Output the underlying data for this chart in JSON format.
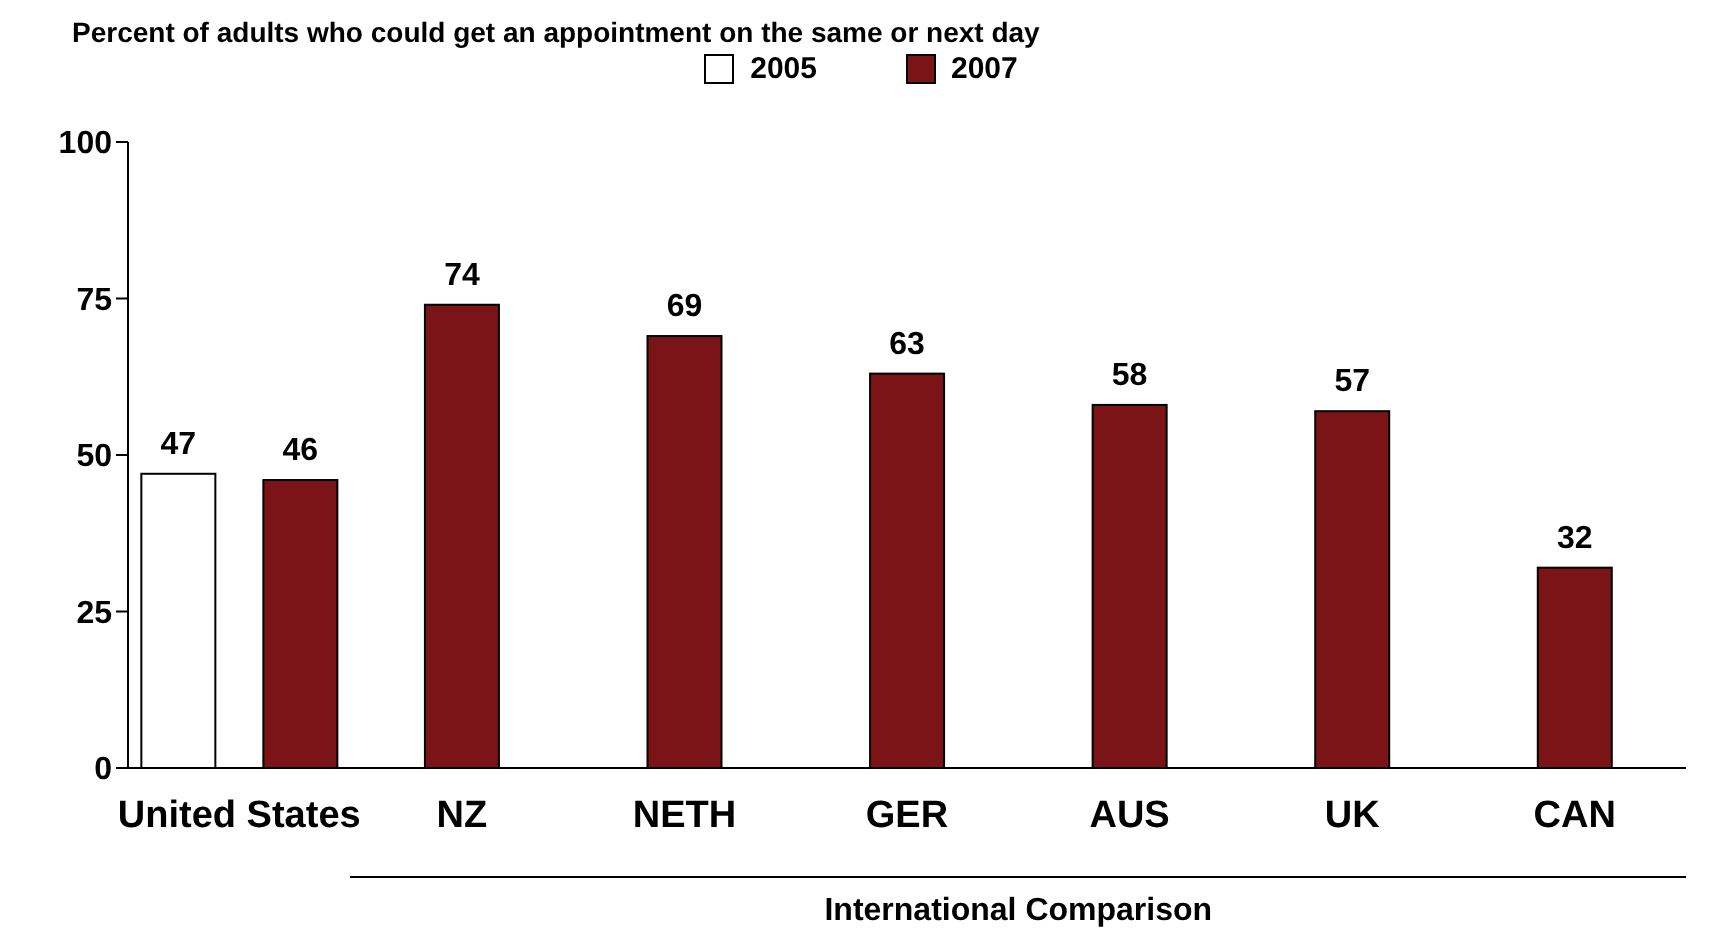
{
  "chart_data": {
    "type": "bar",
    "title": "Percent of adults who could get an appointment on the same or next day",
    "categories": [
      "United States",
      "NZ",
      "NETH",
      "GER",
      "AUS",
      "UK",
      "CAN"
    ],
    "series": [
      {
        "name": "2005",
        "color": "#ffffff",
        "values": [
          47,
          null,
          null,
          null,
          null,
          null,
          null
        ]
      },
      {
        "name": "2007",
        "color": "#7b1416",
        "values": [
          46,
          74,
          69,
          63,
          58,
          57,
          32
        ]
      }
    ],
    "ylim": [
      0,
      100
    ],
    "yticks": [
      0,
      25,
      50,
      75,
      100
    ],
    "data_labels": true,
    "legend": "top",
    "grid": false,
    "annotations": [
      "International Comparison"
    ]
  }
}
